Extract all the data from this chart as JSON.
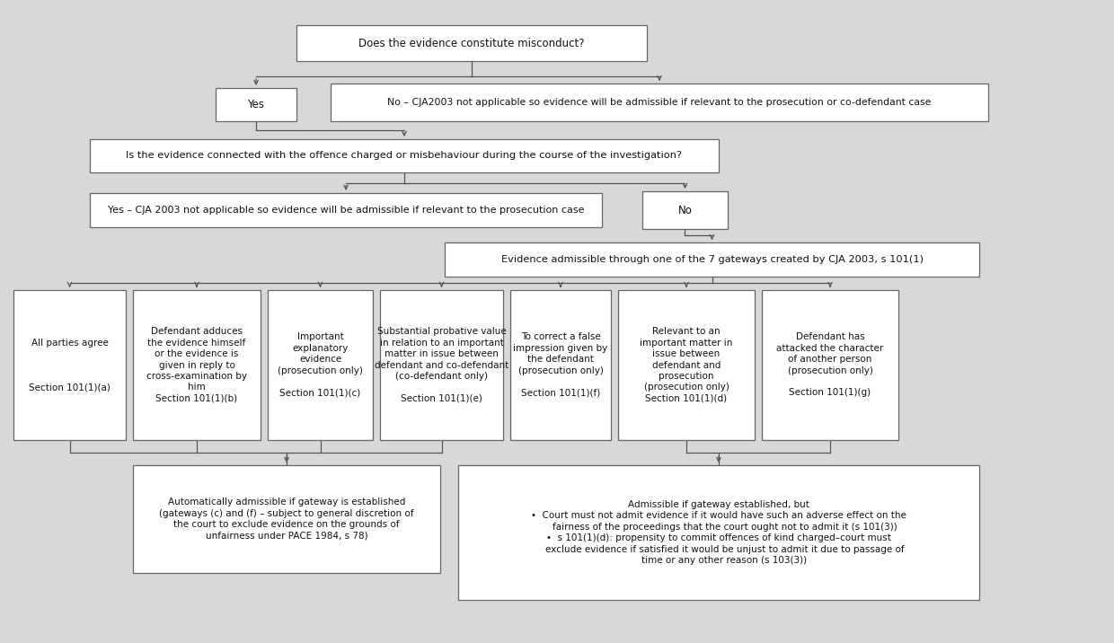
{
  "bg_color": "#d8d8d8",
  "box_fc": "#ffffff",
  "box_ec": "#666666",
  "text_color": "#111111",
  "lw": 0.9,
  "fig_w": 12.4,
  "fig_h": 7.16,
  "arrow_color": "#555555",
  "boxes": [
    {
      "id": "top",
      "xl": 330,
      "yt": 28,
      "xr": 720,
      "yb": 68,
      "lines": [
        "Does the evidence constitute misconduct?"
      ],
      "fs": 8.5
    },
    {
      "id": "yes",
      "xl": 240,
      "yt": 98,
      "xr": 330,
      "yb": 135,
      "lines": [
        "Yes"
      ],
      "fs": 8.5
    },
    {
      "id": "no_long",
      "xl": 368,
      "yt": 93,
      "xr": 1100,
      "yb": 135,
      "lines": [
        "No – CJA2003 not applicable so evidence will be admissible if relevant to the prosecution or co-defendant case"
      ],
      "fs": 7.8
    },
    {
      "id": "q2",
      "xl": 100,
      "yt": 155,
      "xr": 800,
      "yb": 192,
      "lines": [
        "Is the evidence connected with the offence charged or misbehaviour during the course of the investigation?"
      ],
      "fs": 8.2
    },
    {
      "id": "yes_long",
      "xl": 100,
      "yt": 215,
      "xr": 670,
      "yb": 253,
      "lines": [
        "Yes – CJA 2003 not applicable so evidence will be admissible if relevant to the prosecution case"
      ],
      "fs": 8.0
    },
    {
      "id": "no2",
      "xl": 715,
      "yt": 213,
      "xr": 810,
      "yb": 255,
      "lines": [
        "No"
      ],
      "fs": 8.5
    },
    {
      "id": "gw_box",
      "xl": 495,
      "yt": 270,
      "xr": 1090,
      "yb": 308,
      "lines": [
        "Evidence admissible through one of the 7 gateways created by CJA 2003, s 101(1)"
      ],
      "fs": 8.2
    },
    {
      "id": "ga",
      "xl": 15,
      "yt": 323,
      "xr": 140,
      "yb": 490,
      "lines": [
        "All parties agree",
        "",
        "",
        "",
        "Section 101(1)(a)"
      ],
      "fs": 7.5
    },
    {
      "id": "gb",
      "xl": 148,
      "yt": 323,
      "xr": 290,
      "yb": 490,
      "lines": [
        "Defendant adduces",
        "the evidence himself",
        "or the evidence is",
        "given in reply to",
        "cross-examination by",
        "him",
        "Section 101(1)(b)"
      ],
      "fs": 7.5
    },
    {
      "id": "gc",
      "xl": 298,
      "yt": 323,
      "xr": 415,
      "yb": 490,
      "lines": [
        "Important",
        "explanatory",
        "evidence",
        "(prosecution only)",
        "",
        "Section 101(1)(c)"
      ],
      "fs": 7.5
    },
    {
      "id": "ge",
      "xl": 423,
      "yt": 323,
      "xr": 560,
      "yb": 490,
      "lines": [
        "Substantial probative value",
        "in relation to an important",
        "matter in issue between",
        "defendant and co-defendant",
        "(co-defendant only)",
        "",
        "Section 101(1)(e)"
      ],
      "fs": 7.5
    },
    {
      "id": "gf",
      "xl": 568,
      "yt": 323,
      "xr": 680,
      "yb": 490,
      "lines": [
        "To correct a false",
        "impression given by",
        "the defendant",
        "(prosecution only)",
        "",
        "Section 101(1)(f)"
      ],
      "fs": 7.5
    },
    {
      "id": "gd",
      "xl": 688,
      "yt": 323,
      "xr": 840,
      "yb": 490,
      "lines": [
        "Relevant to an",
        "important matter in",
        "issue between",
        "defendant and",
        "prosecution",
        "(prosecution only)",
        "Section 101(1)(d)"
      ],
      "fs": 7.5
    },
    {
      "id": "gg",
      "xl": 848,
      "yt": 323,
      "xr": 1000,
      "yb": 490,
      "lines": [
        "Defendant has",
        "attacked the character",
        "of another person",
        "(prosecution only)",
        "",
        "Section 101(1)(g)"
      ],
      "fs": 7.5
    },
    {
      "id": "auto",
      "xl": 148,
      "yt": 518,
      "xr": 490,
      "yb": 638,
      "lines": [
        "Automatically admissible if gateway is established",
        "(gateways (c) and (f) – subject to general discretion of",
        "the court to exclude evidence on the grounds of",
        "unfairness under PACE 1984, s 78)"
      ],
      "fs": 7.5
    },
    {
      "id": "admiss",
      "xl": 510,
      "yt": 518,
      "xr": 1090,
      "yb": 668,
      "lines": [
        "Admissible if gateway established, but",
        "•  Court must not admit evidence if it would have such an adverse effect on the",
        "    fairness of the proceedings that the court ought not to admit it (s 101(3))",
        "•  s 101(1)(d): propensity to commit offences of kind charged–court must",
        "    exclude evidence if satisfied it would be unjust to admit it due to passage of",
        "    time or any other reason (s 103(3))"
      ],
      "fs": 7.5
    }
  ]
}
